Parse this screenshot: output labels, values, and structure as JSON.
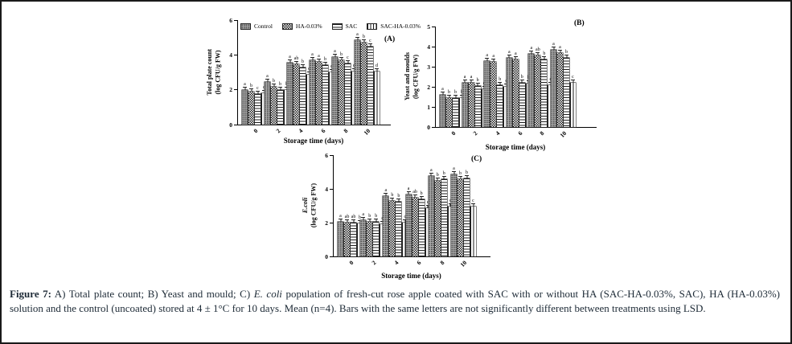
{
  "figure": {
    "caption": {
      "label": "Figure 7:",
      "part1": " A) Total plate count; B) Yeast and mould; C) ",
      "italic_species": "E. coli",
      "part2": " population of fresh-cut rose apple coated with SAC with or without HA (SAC-HA-0.03%, SAC), HA (HA-0.03%) solution and the control (uncoated) stored at 4 ± 1°C for 10 days. Mean (n=4). Bars with the same letters are not significantly different between treatments using LSD."
    }
  },
  "legend": {
    "items": [
      {
        "label": "Control",
        "pattern": "stipple"
      },
      {
        "label": "HA-0.03%",
        "pattern": "check"
      },
      {
        "label": "SAC",
        "pattern": "hlines"
      },
      {
        "label": "SAC-HA-0.03%",
        "pattern": "vlines"
      }
    ]
  },
  "colors": {
    "axis": "#000000",
    "caption_text": "#1d2a36",
    "control_fill": "#b0b0b0",
    "pattern_ink": "#1c1c1c"
  },
  "chart_data": [
    {
      "id": "A",
      "type": "bar",
      "panel_label": "(A)",
      "ylabel_line1": "Total plate count",
      "ylabel_line2": "(log CFU/g FW)",
      "ylabel_italic": false,
      "xlabel": "Storage time (days)",
      "categories": [
        "0",
        "2",
        "4",
        "6",
        "8",
        "10"
      ],
      "ylim": [
        0,
        6
      ],
      "yticks": [
        0,
        2,
        4,
        6
      ],
      "legend_position": "top-inside",
      "series": [
        {
          "name": "Control",
          "pattern": "stipple",
          "values": [
            2.0,
            2.45,
            3.55,
            3.7,
            3.9,
            4.85
          ],
          "letters": [
            "a",
            "a",
            "a",
            "a",
            "a",
            "a"
          ]
        },
        {
          "name": "HA-0.03%",
          "pattern": "check",
          "values": [
            1.9,
            2.15,
            3.45,
            3.6,
            3.7,
            4.7
          ],
          "letters": [
            "b",
            "b",
            "ab",
            "a",
            "b",
            "b"
          ]
        },
        {
          "name": "SAC",
          "pattern": "hlines",
          "values": [
            1.75,
            2.0,
            3.3,
            3.4,
            3.5,
            4.5
          ],
          "letters": [
            "c",
            "b",
            "b",
            "b",
            "c",
            "c"
          ]
        },
        {
          "name": "SAC-HA-0.03%",
          "pattern": "vlines",
          "values": [
            1.78,
            2.0,
            2.85,
            3.0,
            3.05,
            3.05
          ],
          "letters": [
            "c",
            "b",
            "c",
            "c",
            "d",
            "d"
          ]
        }
      ]
    },
    {
      "id": "B",
      "type": "bar",
      "panel_label": "(B)",
      "ylabel_line1": "Yeast and moulds",
      "ylabel_line2": "(log CFU/g FW)",
      "ylabel_italic": false,
      "xlabel": "Storage time (days)",
      "categories": [
        "0",
        "2",
        "4",
        "6",
        "8",
        "10"
      ],
      "ylim": [
        0,
        5
      ],
      "yticks": [
        0,
        1,
        2,
        3,
        4,
        5
      ],
      "legend_position": "none",
      "series": [
        {
          "name": "Control",
          "pattern": "stipple",
          "values": [
            1.6,
            2.2,
            3.3,
            3.45,
            3.65,
            3.85
          ],
          "letters": [
            "a",
            "a",
            "a",
            "a",
            "a",
            "a"
          ]
        },
        {
          "name": "HA-0.03%",
          "pattern": "check",
          "values": [
            1.45,
            2.2,
            3.25,
            3.35,
            3.55,
            3.7
          ],
          "letters": [
            "b",
            "a",
            "a",
            "a",
            "ab",
            "a"
          ]
        },
        {
          "name": "SAC",
          "pattern": "hlines",
          "values": [
            1.45,
            2.05,
            2.1,
            2.2,
            3.35,
            3.45
          ],
          "letters": [
            "b",
            "b",
            "b",
            "b",
            "b",
            "b"
          ]
        },
        {
          "name": "SAC-HA-0.03%",
          "pattern": "vlines",
          "values": [
            1.45,
            1.9,
            2.0,
            2.15,
            2.1,
            2.2
          ],
          "letters": [
            "b",
            "c",
            "c",
            "b",
            "c",
            "c"
          ]
        }
      ]
    },
    {
      "id": "C",
      "type": "bar",
      "panel_label": "(C)",
      "ylabel_line1": "E.coli",
      "ylabel_line2": "(log CFU/g FW)",
      "ylabel_italic": true,
      "xlabel": "Storage time (days)",
      "categories": [
        "0",
        "2",
        "4",
        "6",
        "8",
        "10"
      ],
      "ylim": [
        0,
        6
      ],
      "yticks": [
        0,
        2,
        4,
        6
      ],
      "legend_position": "none",
      "series": [
        {
          "name": "Control",
          "pattern": "stipple",
          "values": [
            2.05,
            2.15,
            3.55,
            3.65,
            4.75,
            4.85
          ],
          "letters": [
            "a",
            "a",
            "a",
            "a",
            "a",
            "a"
          ]
        },
        {
          "name": "HA-0.03%",
          "pattern": "check",
          "values": [
            2.0,
            2.05,
            3.3,
            3.5,
            4.5,
            4.55
          ],
          "letters": [
            "ab",
            "b",
            "b",
            "ab",
            "b",
            "b"
          ]
        },
        {
          "name": "SAC",
          "pattern": "hlines",
          "values": [
            2.0,
            2.05,
            3.25,
            3.4,
            4.55,
            4.6
          ],
          "letters": [
            "ab",
            "b",
            "b",
            "b",
            "b",
            "b"
          ]
        },
        {
          "name": "SAC-HA-0.03%",
          "pattern": "vlines",
          "values": [
            1.95,
            1.9,
            2.0,
            2.85,
            2.95,
            2.95
          ],
          "letters": [
            "b",
            "c",
            "c",
            "c",
            "c",
            "c"
          ]
        }
      ]
    }
  ]
}
